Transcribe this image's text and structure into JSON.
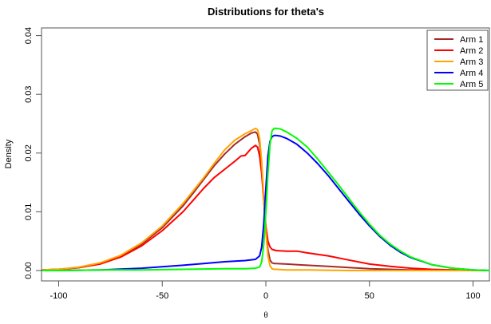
{
  "chart_data": {
    "type": "line",
    "title": "Distributions for theta's",
    "xlabel": "θ",
    "ylabel": "Density",
    "xlim": [
      -108,
      108
    ],
    "ylim": [
      0,
      0.041
    ],
    "xticks": [
      -100,
      -50,
      0,
      50,
      100
    ],
    "yticks": [
      0.0,
      0.01,
      0.02,
      0.03,
      0.04
    ],
    "ytick_labels": [
      "0.00",
      "0.01",
      "0.02",
      "0.03",
      "0.04"
    ],
    "grid": false,
    "legend_position": "top-right",
    "series": [
      {
        "name": "Arm 1",
        "color": "#a52a2a",
        "x": [
          -108,
          -100,
          -90,
          -80,
          -70,
          -60,
          -50,
          -40,
          -35,
          -30,
          -25,
          -20,
          -15,
          -10,
          -7,
          -5,
          -4,
          -3,
          -2,
          -1,
          0,
          1,
          2,
          3,
          4,
          5,
          10,
          20,
          30,
          40,
          50,
          60,
          70,
          80,
          90,
          100,
          108
        ],
        "y": [
          0.0001,
          0.0002,
          0.0005,
          0.0012,
          0.0025,
          0.0045,
          0.0073,
          0.011,
          0.0132,
          0.0155,
          0.0178,
          0.0198,
          0.0215,
          0.0228,
          0.0234,
          0.0236,
          0.0232,
          0.0215,
          0.0175,
          0.012,
          0.007,
          0.0035,
          0.0018,
          0.0013,
          0.0012,
          0.0012,
          0.0011,
          0.0009,
          0.0007,
          0.0005,
          0.0003,
          0.0002,
          0.0001,
          0.0001,
          0.0,
          0.0,
          0.0
        ]
      },
      {
        "name": "Arm 2",
        "color": "#ff0000",
        "x": [
          -108,
          -100,
          -90,
          -80,
          -70,
          -60,
          -50,
          -40,
          -35,
          -30,
          -25,
          -20,
          -15,
          -12,
          -10,
          -7,
          -5,
          -4,
          -3,
          -2,
          -1,
          0,
          1,
          2,
          3,
          5,
          10,
          15,
          20,
          30,
          40,
          50,
          60,
          70,
          80,
          90,
          100,
          108
        ],
        "y": [
          0.0001,
          0.0002,
          0.0005,
          0.0011,
          0.0023,
          0.0042,
          0.0068,
          0.01,
          0.012,
          0.014,
          0.0158,
          0.0172,
          0.0186,
          0.0195,
          0.0196,
          0.0208,
          0.0213,
          0.021,
          0.0195,
          0.0165,
          0.012,
          0.0075,
          0.005,
          0.004,
          0.0036,
          0.0034,
          0.0033,
          0.0033,
          0.003,
          0.0025,
          0.0018,
          0.0011,
          0.0007,
          0.0004,
          0.0002,
          0.0001,
          0.0,
          0.0
        ]
      },
      {
        "name": "Arm 3",
        "color": "#ffa500",
        "x": [
          -108,
          -100,
          -90,
          -80,
          -70,
          -60,
          -50,
          -40,
          -35,
          -30,
          -25,
          -20,
          -15,
          -10,
          -7,
          -5,
          -4,
          -3,
          -2,
          -1,
          0,
          1,
          2,
          3,
          4,
          5,
          10,
          20,
          40,
          60,
          80,
          100,
          108
        ],
        "y": [
          0.0001,
          0.0002,
          0.0006,
          0.0013,
          0.0026,
          0.0047,
          0.0076,
          0.0114,
          0.0136,
          0.0158,
          0.0182,
          0.0205,
          0.0222,
          0.0233,
          0.0238,
          0.0242,
          0.024,
          0.0225,
          0.0185,
          0.0125,
          0.0065,
          0.0025,
          0.0008,
          0.0003,
          0.0002,
          0.0002,
          0.0001,
          0.0001,
          0.0,
          0.0,
          0.0,
          0.0,
          0.0
        ]
      },
      {
        "name": "Arm 4",
        "color": "#0000ff",
        "x": [
          -108,
          -100,
          -80,
          -60,
          -40,
          -30,
          -20,
          -10,
          -5,
          -3,
          -2,
          -1,
          0,
          1,
          2,
          3,
          4,
          5,
          7,
          10,
          15,
          20,
          25,
          30,
          35,
          40,
          45,
          50,
          55,
          60,
          65,
          70,
          80,
          90,
          100,
          108
        ],
        "y": [
          0.0,
          0.0,
          0.0001,
          0.0004,
          0.0009,
          0.0012,
          0.0015,
          0.0017,
          0.0019,
          0.0025,
          0.004,
          0.008,
          0.014,
          0.0195,
          0.022,
          0.0228,
          0.023,
          0.023,
          0.0229,
          0.0225,
          0.0215,
          0.02,
          0.0182,
          0.0162,
          0.014,
          0.0118,
          0.0096,
          0.0076,
          0.0058,
          0.0043,
          0.0031,
          0.0022,
          0.001,
          0.0004,
          0.0001,
          0.0
        ]
      },
      {
        "name": "Arm 5",
        "color": "#00ff00",
        "x": [
          -108,
          -100,
          -80,
          -60,
          -40,
          -20,
          -10,
          -5,
          -3,
          -2,
          -1,
          0,
          1,
          2,
          3,
          4,
          5,
          7,
          10,
          15,
          20,
          25,
          30,
          35,
          40,
          45,
          50,
          55,
          60,
          65,
          70,
          80,
          90,
          100,
          108
        ],
        "y": [
          0.0,
          0.0,
          0.0001,
          0.0001,
          0.0002,
          0.0003,
          0.0003,
          0.0004,
          0.0006,
          0.0015,
          0.0045,
          0.01,
          0.0165,
          0.0215,
          0.0238,
          0.0242,
          0.0242,
          0.0241,
          0.0236,
          0.0225,
          0.021,
          0.019,
          0.0168,
          0.0146,
          0.0123,
          0.01,
          0.0079,
          0.006,
          0.0045,
          0.0033,
          0.0023,
          0.001,
          0.0004,
          0.0001,
          0.0
        ]
      }
    ]
  }
}
